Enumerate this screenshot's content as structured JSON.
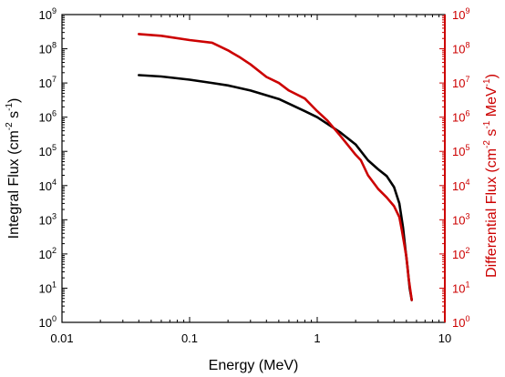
{
  "chart_data": {
    "type": "line",
    "xlabel": "Energy (MeV)",
    "ylabel_left": {
      "base": "Integral Flux (cm",
      "exp1": "-2",
      "mid": " s",
      "exp2": "-1",
      "end": ")"
    },
    "ylabel_right": {
      "base": "Differential Flux (cm",
      "exp1": "-2",
      "mid1": " s",
      "exp2": "-1",
      "mid2": " MeV",
      "exp3": "-1",
      "end": ")"
    },
    "xscale": "log",
    "yscale": "log",
    "xlim": [
      0.01,
      10
    ],
    "ylim": [
      1,
      1000000000
    ],
    "x_ticks": [
      {
        "value": 0.01,
        "label": "0.01"
      },
      {
        "value": 0.1,
        "label": "0.1"
      },
      {
        "value": 1,
        "label": "1"
      },
      {
        "value": 10,
        "label": "10"
      }
    ],
    "y_ticks": [
      {
        "value": 1,
        "base": "10",
        "exp": "0"
      },
      {
        "value": 10,
        "base": "10",
        "exp": "1"
      },
      {
        "value": 100,
        "base": "10",
        "exp": "2"
      },
      {
        "value": 1000,
        "base": "10",
        "exp": "3"
      },
      {
        "value": 10000,
        "base": "10",
        "exp": "4"
      },
      {
        "value": 100000,
        "base": "10",
        "exp": "5"
      },
      {
        "value": 1000000,
        "base": "10",
        "exp": "6"
      },
      {
        "value": 10000000,
        "base": "10",
        "exp": "7"
      },
      {
        "value": 100000000,
        "base": "10",
        "exp": "8"
      },
      {
        "value": 1000000000,
        "base": "10",
        "exp": "9"
      }
    ],
    "grid": false,
    "legend": "none",
    "series": [
      {
        "axis": "left",
        "color": "#000000",
        "x": [
          0.04,
          0.06,
          0.1,
          0.15,
          0.2,
          0.3,
          0.5,
          0.8,
          1.0,
          1.5,
          2.0,
          2.5,
          3.0,
          3.5,
          4.0,
          4.4,
          4.7,
          4.9,
          5.1,
          5.3,
          5.5
        ],
        "y": [
          17000000,
          15500000,
          12500000,
          10000000,
          8500000,
          6000000,
          3400000,
          1500000,
          1000000,
          370000,
          160000,
          55000,
          30000,
          19000,
          9000,
          3000,
          600,
          150,
          40,
          10,
          4.5
        ]
      },
      {
        "axis": "right",
        "color": "#cc0000",
        "x": [
          0.04,
          0.06,
          0.1,
          0.15,
          0.2,
          0.25,
          0.3,
          0.4,
          0.5,
          0.6,
          0.8,
          1.0,
          1.2,
          1.5,
          2.0,
          2.2,
          2.5,
          3.0,
          3.5,
          4.0,
          4.4,
          4.6,
          4.8,
          5.0,
          5.2,
          5.5
        ],
        "y": [
          270000000,
          240000000,
          180000000,
          150000000,
          90000000,
          55000000,
          35000000,
          15000000,
          10000000,
          6000000,
          3500000,
          1500000,
          800000,
          300000,
          80000,
          55000,
          20000,
          8000,
          4500,
          2500,
          1200,
          500,
          200,
          80,
          20,
          4.5
        ]
      }
    ]
  }
}
